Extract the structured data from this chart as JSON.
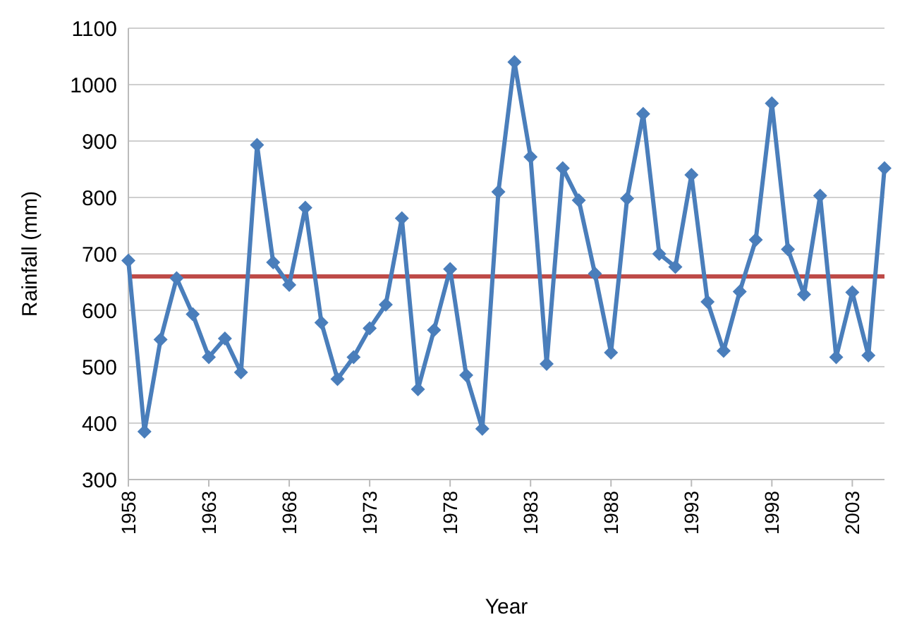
{
  "chart_data": {
    "type": "line",
    "xlabel": "Year",
    "ylabel": "Rainfall (mm)",
    "categories": [
      "1958",
      null,
      null,
      null,
      null,
      "1963",
      null,
      null,
      null,
      null,
      "1968",
      null,
      null,
      null,
      null,
      "1973",
      null,
      null,
      null,
      null,
      "1978",
      null,
      null,
      null,
      null,
      "1983",
      null,
      null,
      null,
      null,
      "1988",
      null,
      null,
      null,
      null,
      "1993",
      null,
      null,
      null,
      null,
      "1998",
      null,
      null,
      null,
      null,
      "2003",
      null,
      null
    ],
    "series": [
      {
        "color": "#4a7ebb",
        "values": [
          688,
          385,
          548,
          657,
          593,
          517,
          550,
          490,
          893,
          685,
          645,
          782,
          578,
          478,
          517,
          568,
          610,
          763,
          460,
          565,
          673,
          485,
          390,
          810,
          1040,
          872,
          505,
          852,
          795,
          665,
          525,
          798,
          948,
          700,
          677,
          840,
          615,
          528,
          633,
          725,
          967,
          708,
          628,
          803,
          517,
          632,
          520,
          852
        ]
      }
    ],
    "ylim": [
      300,
      1100
    ],
    "yticks": [
      300,
      400,
      500,
      600,
      700,
      800,
      900,
      1000,
      1100
    ],
    "grid": "y",
    "marker": "diamond",
    "line_style": "solid",
    "ref_lines": [
      {
        "axis": "y",
        "value": 660,
        "color": "#be4b48"
      }
    ]
  }
}
